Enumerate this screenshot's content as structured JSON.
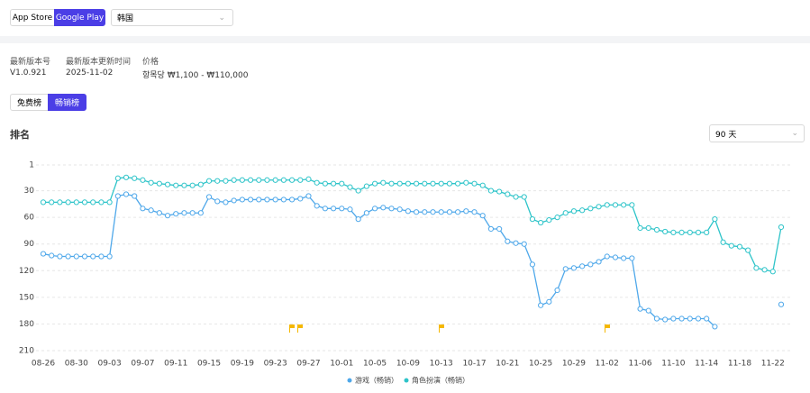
{
  "header": {
    "store_tabs": [
      "App Store",
      "Google Play"
    ],
    "region": "韩国"
  },
  "info": [
    {
      "label": "最新版本号",
      "value": "V1.0.921"
    },
    {
      "label": "最新版本更新时间",
      "value": "2025-11-02"
    },
    {
      "label": "价格",
      "value": "항목당 ₩1,100 - ₩110,000"
    }
  ],
  "rank_tabs": [
    "免费榜",
    "畅销榜"
  ],
  "section_title": "排名",
  "period": "90 天",
  "chart_data": {
    "type": "line",
    "categories": [
      "08-26",
      null,
      null,
      null,
      "08-30",
      null,
      null,
      null,
      "09-03",
      null,
      null,
      null,
      "09-07",
      null,
      null,
      null,
      "09-11",
      null,
      null,
      null,
      "09-15",
      null,
      null,
      null,
      "09-19",
      null,
      null,
      null,
      "09-23",
      null,
      null,
      null,
      "09-27",
      null,
      null,
      null,
      "10-01",
      null,
      null,
      null,
      "10-05",
      null,
      null,
      null,
      "10-09",
      null,
      null,
      null,
      "10-13",
      null,
      null,
      null,
      "10-17",
      null,
      null,
      null,
      "10-21",
      null,
      null,
      null,
      "10-25",
      null,
      null,
      null,
      "10-29",
      null,
      null,
      null,
      "11-02",
      null,
      null,
      null,
      "11-06",
      null,
      null,
      null,
      "11-10",
      null,
      null,
      null,
      "11-14",
      null,
      null,
      null,
      "11-18",
      null,
      null,
      null,
      "11-22",
      null
    ],
    "series": [
      {
        "name": "游戏（畅销）",
        "color": "#4fa8ea",
        "values": [
          101,
          103,
          104,
          104,
          104,
          104,
          104,
          104,
          104,
          36,
          34,
          36,
          50,
          52,
          55,
          58,
          56,
          55,
          55,
          55,
          37,
          42,
          43,
          41,
          40,
          40,
          40,
          40,
          40,
          40,
          40,
          39,
          36,
          47,
          50,
          50,
          50,
          51,
          62,
          55,
          50,
          49,
          50,
          51,
          53,
          54,
          54,
          54,
          54,
          54,
          54,
          53,
          54,
          58,
          73,
          73,
          87,
          89,
          90,
          113,
          159,
          155,
          142,
          118,
          117,
          115,
          113,
          110,
          104,
          105,
          106,
          106,
          163,
          165,
          174,
          175,
          174,
          174,
          174,
          174,
          174,
          183,
          null,
          null,
          null,
          null,
          null,
          null,
          null,
          158
        ]
      },
      {
        "name": "角色扮演（畅销）",
        "color": "#2ec4c9",
        "values": [
          43,
          43,
          43,
          43,
          43,
          43,
          43,
          43,
          43,
          16,
          15,
          16,
          18,
          21,
          22,
          23,
          24,
          24,
          24,
          23,
          19,
          19,
          19,
          18,
          18,
          18,
          18,
          18,
          18,
          18,
          18,
          18,
          17,
          21,
          22,
          22,
          22,
          26,
          30,
          25,
          22,
          21,
          22,
          22,
          22,
          22,
          22,
          22,
          22,
          22,
          22,
          21,
          22,
          24,
          30,
          31,
          34,
          37,
          37,
          62,
          66,
          63,
          60,
          55,
          53,
          52,
          50,
          48,
          46,
          46,
          46,
          46,
          72,
          72,
          74,
          76,
          77,
          77,
          77,
          77,
          77,
          62,
          88,
          92,
          93,
          97,
          117,
          119,
          121,
          71
        ]
      }
    ],
    "ylim": [
      1,
      210
    ],
    "y_inverted": true,
    "yticks": [
      1,
      30,
      60,
      90,
      120,
      150,
      180,
      210
    ],
    "grid": true
  }
}
